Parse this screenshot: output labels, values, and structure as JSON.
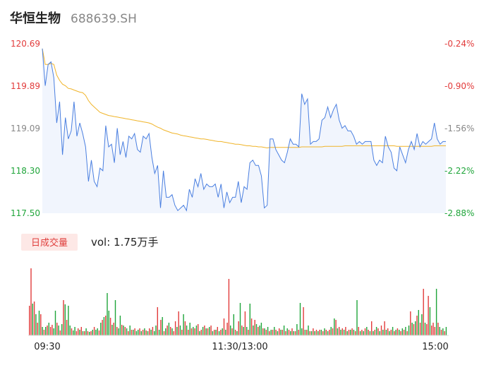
{
  "header": {
    "name": "华恒生物",
    "code": "688639.SH"
  },
  "colors": {
    "up": "#e23b3b",
    "down": "#1fa53a",
    "price_line": "#4a7fe0",
    "avg_line": "#f0b429",
    "badge_bg": "#fde8e6"
  },
  "volume_panel": {
    "badge": "日成交量",
    "label": "vol: 1.75万手"
  },
  "chart_data": {
    "type": "line",
    "y_ticks_left": [
      "120.69",
      "119.89",
      "119.09",
      "118.30",
      "117.50"
    ],
    "y_ticks_right": [
      "-0.24%",
      "-0.90%",
      "-1.56%",
      "-2.22%",
      "-2.88%"
    ],
    "ylim": [
      117.5,
      120.69
    ],
    "time_ticks": [
      "09:30",
      "11:30/13:00",
      "15:00"
    ],
    "price": [
      120.6,
      119.9,
      120.3,
      120.35,
      120.05,
      119.2,
      119.6,
      118.6,
      119.3,
      118.9,
      119.05,
      119.6,
      118.95,
      119.2,
      119.0,
      118.75,
      118.1,
      118.5,
      118.1,
      118.0,
      118.35,
      118.3,
      119.15,
      118.75,
      118.8,
      118.45,
      119.1,
      118.6,
      118.85,
      118.55,
      118.95,
      118.9,
      119.0,
      118.7,
      118.65,
      118.95,
      118.9,
      119.0,
      118.55,
      118.25,
      118.4,
      117.6,
      118.3,
      117.8,
      117.8,
      117.85,
      117.65,
      117.55,
      117.6,
      117.65,
      117.55,
      117.95,
      117.8,
      118.15,
      118.0,
      118.25,
      117.95,
      118.05,
      118.0,
      118.0,
      118.05,
      117.8,
      118.05,
      117.6,
      117.9,
      117.7,
      117.8,
      117.8,
      118.1,
      117.7,
      118.0,
      117.95,
      118.45,
      118.5,
      118.4,
      118.4,
      118.2,
      117.6,
      117.65,
      118.9,
      118.9,
      118.7,
      118.6,
      118.5,
      118.45,
      118.65,
      118.9,
      118.8,
      118.8,
      118.75,
      119.75,
      119.55,
      119.65,
      118.8,
      118.85,
      118.85,
      118.9,
      119.25,
      119.3,
      119.5,
      119.3,
      119.45,
      119.55,
      119.25,
      119.1,
      119.15,
      119.05,
      119.05,
      118.95,
      118.8,
      118.85,
      118.8,
      118.85,
      118.85,
      118.85,
      118.5,
      118.4,
      118.5,
      118.45,
      118.95,
      118.75,
      118.65,
      118.35,
      118.3,
      118.75,
      118.6,
      118.45,
      118.7,
      118.85,
      118.7,
      119.0,
      118.75,
      118.85,
      118.8,
      118.85,
      118.9,
      119.2,
      118.9,
      118.8,
      118.85,
      118.85
    ],
    "avg": [
      120.6,
      120.3,
      120.3,
      120.32,
      120.3,
      120.1,
      120.0,
      119.93,
      119.9,
      119.85,
      119.84,
      119.82,
      119.8,
      119.78,
      119.77,
      119.72,
      119.62,
      119.55,
      119.5,
      119.45,
      119.4,
      119.38,
      119.36,
      119.34,
      119.33,
      119.32,
      119.31,
      119.3,
      119.29,
      119.28,
      119.27,
      119.26,
      119.25,
      119.24,
      119.23,
      119.22,
      119.21,
      119.2,
      119.18,
      119.15,
      119.12,
      119.1,
      119.07,
      119.05,
      119.03,
      119.01,
      119.0,
      118.99,
      118.97,
      118.96,
      118.95,
      118.94,
      118.93,
      118.92,
      118.91,
      118.9,
      118.9,
      118.89,
      118.88,
      118.87,
      118.86,
      118.85,
      118.85,
      118.84,
      118.83,
      118.82,
      118.81,
      118.8,
      118.8,
      118.79,
      118.78,
      118.77,
      118.77,
      118.76,
      118.76,
      118.75,
      118.75,
      118.74,
      118.73,
      118.74,
      118.74,
      118.74,
      118.74,
      118.74,
      118.74,
      118.74,
      118.74,
      118.74,
      118.74,
      118.74,
      118.75,
      118.75,
      118.75,
      118.75,
      118.75,
      118.75,
      118.75,
      118.75,
      118.76,
      118.76,
      118.76,
      118.76,
      118.76,
      118.76,
      118.76,
      118.77,
      118.77,
      118.77,
      118.77,
      118.77,
      118.77,
      118.77,
      118.77,
      118.77,
      118.77,
      118.77,
      118.77,
      118.77,
      118.77,
      118.77,
      118.77,
      118.77,
      118.77,
      118.76,
      118.76,
      118.76,
      118.76,
      118.76,
      118.76,
      118.76,
      118.76,
      118.76,
      118.76,
      118.76,
      118.76,
      118.76,
      118.77,
      118.77,
      118.77,
      118.77,
      118.77
    ],
    "volume": [
      42,
      95,
      45,
      48,
      30,
      18,
      35,
      30,
      12,
      8,
      12,
      14,
      18,
      12,
      15,
      10,
      35,
      18,
      14,
      7,
      16,
      50,
      44,
      22,
      42,
      14,
      10,
      7,
      12,
      6,
      10,
      8,
      12,
      6,
      6,
      10,
      6,
      5,
      6,
      8,
      12,
      8,
      10,
      7,
      18,
      22,
      26,
      28,
      60,
      35,
      25,
      15,
      18,
      50,
      12,
      10,
      28,
      15,
      14,
      12,
      10,
      6,
      14,
      8,
      8,
      10,
      6,
      8,
      10,
      6,
      8,
      10,
      7,
      6,
      10,
      8,
      12,
      6,
      14,
      40,
      8,
      22,
      26,
      6,
      10,
      14,
      18,
      12,
      10,
      6,
      20,
      12,
      34,
      14,
      8,
      30,
      20,
      14,
      8,
      18,
      10,
      12,
      10,
      14,
      16,
      6,
      8,
      12,
      14,
      10,
      10,
      12,
      14,
      6,
      8,
      8,
      12,
      6,
      8,
      10,
      24,
      8,
      18,
      80,
      14,
      10,
      30,
      8,
      6,
      20,
      46,
      14,
      12,
      34,
      12,
      8,
      45,
      24,
      14,
      22,
      16,
      12,
      14,
      18,
      10,
      10,
      8,
      12,
      6,
      8,
      8,
      12,
      8,
      6,
      10,
      8,
      8,
      14,
      6,
      10,
      8,
      6,
      10,
      6,
      6,
      16,
      8,
      46,
      10,
      40,
      8,
      8,
      14,
      6,
      6,
      10,
      6,
      8,
      6,
      8,
      8,
      6,
      10,
      8,
      6,
      8,
      12,
      10,
      24,
      22,
      10,
      12,
      8,
      10,
      8,
      12,
      6,
      8,
      8,
      10,
      8,
      6,
      50,
      12,
      6,
      8,
      6,
      10,
      12,
      8,
      6,
      20,
      6,
      8,
      12,
      10,
      6,
      14,
      8,
      20,
      8,
      10,
      6,
      8,
      12,
      6,
      8,
      10,
      8,
      6,
      10,
      8,
      12,
      6,
      14,
      34,
      18,
      16,
      20,
      28,
      36,
      18,
      30,
      66,
      18,
      16,
      56,
      40,
      14,
      18,
      12,
      66,
      18,
      12,
      8,
      10,
      6,
      12
    ],
    "volume_up": [
      1,
      1,
      0,
      1,
      0,
      1,
      0,
      1,
      0,
      1,
      0,
      1,
      0,
      1,
      1,
      0,
      0,
      1,
      0,
      1,
      0,
      1,
      0,
      1,
      0,
      0,
      1,
      0,
      0,
      1,
      1,
      0,
      1,
      0,
      1,
      0,
      1,
      0,
      1,
      0,
      1,
      0,
      0,
      1,
      0,
      1,
      0,
      1,
      0,
      0,
      1,
      0,
      1,
      0,
      1,
      0,
      0,
      1,
      0,
      1,
      0,
      1,
      0,
      1,
      0,
      1,
      0,
      0,
      1,
      0,
      1,
      0,
      1,
      0,
      1,
      0,
      1,
      0,
      0,
      1,
      0,
      1,
      0,
      1,
      0,
      1,
      0,
      1,
      0,
      1,
      1,
      0,
      1,
      0,
      1,
      0,
      1,
      0,
      1,
      0,
      1,
      0,
      1,
      0,
      1,
      0,
      1,
      0,
      1,
      0,
      1,
      0,
      1,
      0,
      1,
      0,
      1,
      0,
      1,
      0,
      1,
      0,
      1,
      1,
      0,
      1,
      0,
      1,
      0,
      1,
      0,
      1,
      0,
      1,
      0,
      1,
      0,
      1,
      0,
      1,
      0,
      1,
      0,
      0,
      1,
      0,
      1,
      0,
      1,
      0,
      1,
      0,
      1,
      0,
      1,
      0,
      1,
      0,
      1,
      0,
      1,
      0,
      1,
      0,
      1,
      0,
      1,
      0,
      0,
      1,
      0,
      1,
      0,
      1,
      0,
      1,
      0,
      1,
      0,
      1,
      0,
      1,
      0,
      1,
      0,
      1,
      0,
      1,
      0,
      1,
      0,
      1,
      0,
      1,
      0,
      1,
      0,
      1,
      0,
      1,
      0,
      1,
      0,
      1,
      0,
      1,
      0,
      1,
      0,
      1,
      0,
      1,
      0,
      1,
      0,
      1,
      0,
      1,
      0,
      1,
      0,
      1,
      0,
      1,
      0,
      1,
      0,
      1,
      0,
      1,
      0,
      1,
      0,
      1,
      0,
      1,
      0,
      1,
      0,
      1,
      0,
      1,
      0,
      1,
      0,
      1,
      1,
      0,
      1,
      1,
      1,
      0,
      1,
      0,
      1,
      0,
      1,
      0,
      1,
      0,
      1,
      0
    ]
  }
}
